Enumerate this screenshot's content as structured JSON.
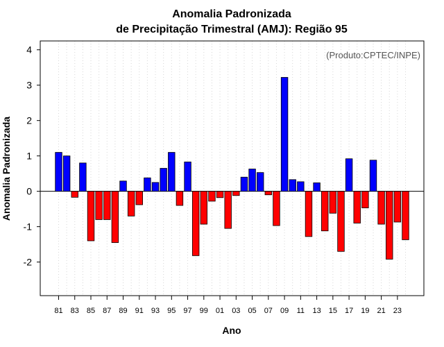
{
  "chart_data": {
    "type": "bar",
    "title": "Anomalia Padronizada",
    "subtitle": "de Precipitação Trimestral (AMJ): Região 95",
    "xlabel": "Ano",
    "ylabel": "Anomalia Padronizada",
    "annotation": "(Produto:CPTEC/INPE)",
    "ylim": [
      -2.95,
      4.25
    ],
    "yticks": [
      -2,
      -1,
      0,
      1,
      2,
      3,
      4
    ],
    "grid": "vertical dotted",
    "positive_color": "#0000ff",
    "negative_color": "#ff0000",
    "categories": [
      "1981",
      "1982",
      "1983",
      "1984",
      "1985",
      "1986",
      "1987",
      "1988",
      "1989",
      "1990",
      "1991",
      "1992",
      "1993",
      "1994",
      "1995",
      "1996",
      "1997",
      "1998",
      "1999",
      "2000",
      "2001",
      "2002",
      "2003",
      "2004",
      "2005",
      "2006",
      "2007",
      "2008",
      "2009",
      "2010",
      "2011",
      "2012",
      "2013",
      "2014",
      "2015",
      "2016",
      "2017",
      "2018",
      "2019",
      "2020",
      "2021",
      "2022",
      "2023",
      "2024"
    ],
    "xtick_labels": [
      "81",
      "83",
      "85",
      "87",
      "89",
      "91",
      "93",
      "95",
      "97",
      "99",
      "01",
      "03",
      "05",
      "07",
      "09",
      "11",
      "13",
      "15",
      "17",
      "19",
      "21",
      "23"
    ],
    "values": [
      1.1,
      1.0,
      -0.17,
      0.8,
      -1.4,
      -0.8,
      -0.8,
      -1.45,
      0.29,
      -0.7,
      -0.38,
      0.38,
      0.25,
      0.65,
      1.1,
      -0.4,
      0.83,
      -1.82,
      -0.93,
      -0.28,
      -0.18,
      -1.05,
      -0.12,
      0.4,
      0.63,
      0.53,
      -0.1,
      -0.97,
      3.22,
      0.33,
      0.27,
      -1.28,
      0.24,
      -1.12,
      -0.62,
      -1.7,
      0.92,
      -0.9,
      -0.47,
      0.88,
      -0.93,
      -1.92,
      -0.87,
      -1.37
    ]
  }
}
